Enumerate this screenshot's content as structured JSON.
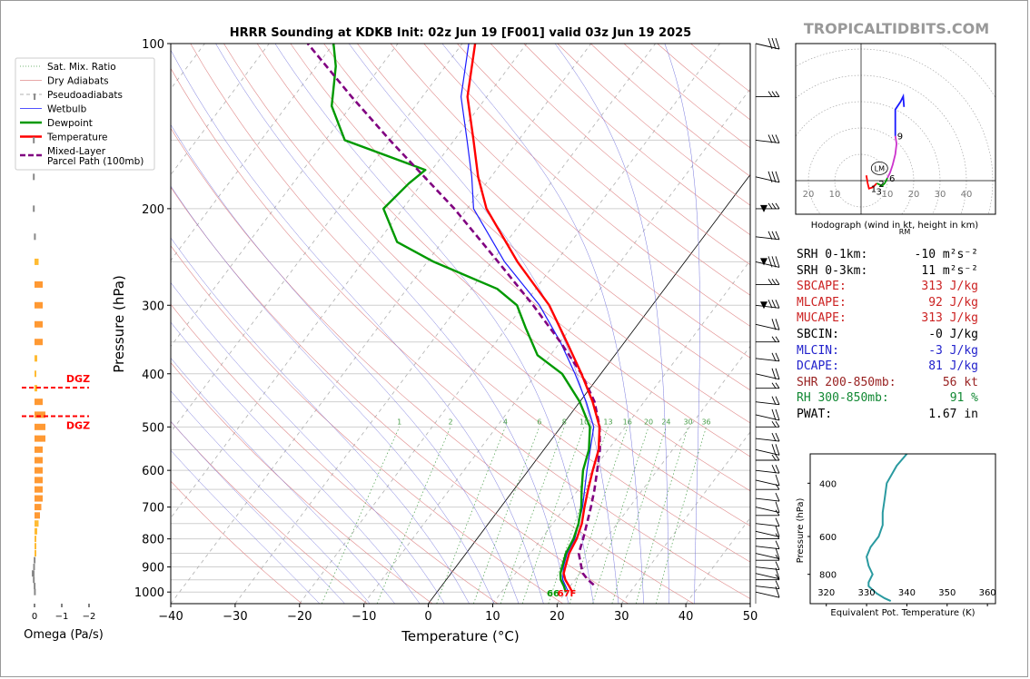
{
  "watermark": "TROPICALTIDBITS.COM",
  "chart_data": {
    "type": "skew-t",
    "title": "HRRR Sounding at KDKB Init: 02z Jun 19 [F001] valid 03z Jun 19 2025",
    "xlabel": "Temperature (°C)",
    "ylabel": "Pressure (hPa)",
    "xlim": [
      -40,
      50
    ],
    "ylim": [
      1050,
      100
    ],
    "x_ticks": [
      "−40",
      "−30",
      "−20",
      "−10",
      "0",
      "10",
      "20",
      "30",
      "40",
      "50"
    ],
    "y_ticks": [
      "100",
      "200",
      "300",
      "400",
      "500",
      "600",
      "700",
      "800",
      "900",
      "1000"
    ],
    "legend": [
      {
        "label": "Sat. Mix. Ratio",
        "color": "#4a9e4a",
        "style": "dotted"
      },
      {
        "label": "Dry Adiabats",
        "color": "#e08a8a",
        "style": "solid"
      },
      {
        "label": "Pseudoadiabats",
        "color": "#999999",
        "style": "dashed"
      },
      {
        "label": "Wetbulb",
        "color": "#1a1aff",
        "style": "solid"
      },
      {
        "label": "Dewpoint",
        "color": "#009900",
        "style": "solid"
      },
      {
        "label": "Temperature",
        "color": "#ff0000",
        "style": "solid"
      },
      {
        "label": "Mixed-Layer\nParcel Path (100mb)",
        "color": "#800080",
        "style": "dashed"
      }
    ],
    "mixing_ratio_labels": [
      "1",
      "2",
      "4",
      "6",
      "8",
      "10",
      "13",
      "16",
      "20",
      "24",
      "30",
      "36"
    ],
    "series": [
      {
        "name": "Temperature",
        "color": "#ff0000",
        "points": [
          [
            1000,
            21
          ],
          [
            975,
            19.8
          ],
          [
            950,
            18.5
          ],
          [
            925,
            17.5
          ],
          [
            900,
            17
          ],
          [
            850,
            16
          ],
          [
            800,
            15.5
          ],
          [
            750,
            14.5
          ],
          [
            700,
            13
          ],
          [
            650,
            11.5
          ],
          [
            600,
            10
          ],
          [
            550,
            8.5
          ],
          [
            500,
            6
          ],
          [
            450,
            2
          ],
          [
            400,
            -3
          ],
          [
            350,
            -9
          ],
          [
            300,
            -16
          ],
          [
            250,
            -26
          ],
          [
            200,
            -37
          ],
          [
            175,
            -42
          ],
          [
            150,
            -47
          ],
          [
            125,
            -53
          ],
          [
            100,
            -58
          ]
        ]
      },
      {
        "name": "Dewpoint",
        "color": "#009900",
        "points": [
          [
            1000,
            20
          ],
          [
            975,
            19
          ],
          [
            950,
            17.8
          ],
          [
            925,
            17
          ],
          [
            900,
            16.5
          ],
          [
            850,
            15.5
          ],
          [
            800,
            15
          ],
          [
            750,
            14
          ],
          [
            700,
            12.5
          ],
          [
            650,
            10.5
          ],
          [
            600,
            8.5
          ],
          [
            550,
            7
          ],
          [
            500,
            4.5
          ],
          [
            450,
            0
          ],
          [
            400,
            -6
          ],
          [
            370,
            -12
          ],
          [
            330,
            -17
          ],
          [
            300,
            -21
          ],
          [
            280,
            -26
          ],
          [
            250,
            -39
          ],
          [
            230,
            -47
          ],
          [
            200,
            -53
          ],
          [
            180,
            -52
          ],
          [
            170,
            -51
          ],
          [
            150,
            -67
          ],
          [
            130,
            -73
          ],
          [
            110,
            -77
          ],
          [
            100,
            -80
          ]
        ]
      },
      {
        "name": "Wetbulb",
        "color": "#1a1aff",
        "points": [
          [
            1000,
            20.4
          ],
          [
            950,
            18.1
          ],
          [
            900,
            16.7
          ],
          [
            850,
            15.7
          ],
          [
            800,
            15.2
          ],
          [
            700,
            12.7
          ],
          [
            600,
            9.1
          ],
          [
            500,
            5.1
          ],
          [
            450,
            1
          ],
          [
            400,
            -4
          ],
          [
            350,
            -10
          ],
          [
            300,
            -17.5
          ],
          [
            250,
            -28
          ],
          [
            200,
            -39
          ],
          [
            175,
            -43
          ],
          [
            150,
            -48
          ],
          [
            125,
            -54
          ],
          [
            100,
            -59
          ]
        ]
      },
      {
        "name": "Mixed-Layer Parcel Path (100mb)",
        "color": "#800080",
        "points": [
          [
            970,
            23.5
          ],
          [
            950,
            22
          ],
          [
            925,
            20.5
          ],
          [
            900,
            19.5
          ],
          [
            850,
            17.5
          ],
          [
            800,
            16.5
          ],
          [
            750,
            15.3
          ],
          [
            700,
            14
          ],
          [
            650,
            12.5
          ],
          [
            600,
            10.7
          ],
          [
            550,
            8.7
          ],
          [
            500,
            6
          ],
          [
            450,
            2.3
          ],
          [
            400,
            -3
          ],
          [
            350,
            -10
          ],
          [
            300,
            -18.5
          ],
          [
            250,
            -29
          ],
          [
            200,
            -42
          ],
          [
            150,
            -60
          ],
          [
            125,
            -71
          ],
          [
            100,
            -84
          ]
        ]
      }
    ],
    "surface_labels": {
      "dewpoint": "66",
      "temperature": "67F"
    },
    "omega": {
      "xlabel": "Omega (Pa/s)",
      "x_ticks": [
        "0",
        "−1",
        "−2"
      ],
      "dgz_label": "DGZ",
      "dgz_bounds_hpa": [
        424,
        478
      ],
      "levels": [
        [
          1000,
          0.02
        ],
        [
          975,
          0.03
        ],
        [
          950,
          0.06
        ],
        [
          925,
          0.1
        ],
        [
          900,
          0.05
        ],
        [
          875,
          0.03
        ],
        [
          850,
          -0.04
        ],
        [
          825,
          -0.06
        ],
        [
          800,
          -0.06
        ],
        [
          775,
          -0.1
        ],
        [
          750,
          -0.15
        ],
        [
          725,
          -0.2
        ],
        [
          700,
          -0.25
        ],
        [
          675,
          -0.3
        ],
        [
          650,
          -0.3
        ],
        [
          625,
          -0.3
        ],
        [
          600,
          -0.3
        ],
        [
          575,
          -0.3
        ],
        [
          550,
          -0.3
        ],
        [
          525,
          -0.4
        ],
        [
          500,
          -0.4
        ],
        [
          475,
          -0.4
        ],
        [
          450,
          -0.3
        ],
        [
          425,
          -0.1
        ],
        [
          400,
          -0.05
        ],
        [
          375,
          -0.1
        ],
        [
          350,
          -0.3
        ],
        [
          325,
          -0.3
        ],
        [
          300,
          -0.3
        ],
        [
          275,
          -0.3
        ],
        [
          250,
          -0.15
        ],
        [
          225,
          0.02
        ],
        [
          200,
          0.06
        ],
        [
          175,
          0.06
        ],
        [
          150,
          0.06
        ],
        [
          125,
          0.03
        ]
      ]
    },
    "hodograph": {
      "caption": "Hodograph (wind in kt, height in km)",
      "ring_labels": [
        "20",
        "10",
        "10",
        "20",
        "30",
        "40"
      ],
      "lm_label": "LM",
      "rm_label": "RM",
      "height_labels": [
        {
          "k": "1",
          "u": 3,
          "v": -3
        },
        {
          "k": "2",
          "u": 6,
          "v": -1
        },
        {
          "k": "3",
          "u": 5,
          "v": -4
        },
        {
          "k": "6",
          "u": 10,
          "v": 1
        },
        {
          "k": "9",
          "u": 13,
          "v": 17
        }
      ],
      "trace": [
        {
          "color": "#ff0000",
          "points": [
            [
              2,
              2
            ],
            [
              2.5,
              -1
            ],
            [
              3,
              -3
            ],
            [
              4.5,
              -2.5
            ],
            [
              6,
              -1
            ]
          ]
        },
        {
          "color": "#009900",
          "points": [
            [
              6,
              -1
            ],
            [
              7,
              -1.5
            ],
            [
              8,
              -2
            ],
            [
              9,
              -1
            ],
            [
              10,
              1
            ]
          ]
        },
        {
          "color": "#cc33cc",
          "points": [
            [
              10,
              1
            ],
            [
              11,
              3
            ],
            [
              12,
              6
            ],
            [
              13,
              10
            ],
            [
              13.5,
              14
            ],
            [
              13,
              17
            ]
          ]
        },
        {
          "color": "#1a1aff",
          "points": [
            [
              13,
              17
            ],
            [
              13,
              22
            ],
            [
              13,
              27
            ],
            [
              15,
              30
            ],
            [
              16,
              32
            ],
            [
              16.3,
              28
            ]
          ]
        }
      ]
    },
    "theta_e": {
      "ylabel": "Pressure (hPa)",
      "xlabel": "Equivalent Pot. Temperature (K)",
      "x_ticks": [
        "320",
        "330",
        "340",
        "350",
        "360"
      ],
      "y_ticks": [
        "400",
        "600",
        "800"
      ],
      "points": [
        [
          980,
          336
        ],
        [
          960,
          334.5
        ],
        [
          925,
          332.5
        ],
        [
          900,
          331.5
        ],
        [
          875,
          330.5
        ],
        [
          850,
          330.5
        ],
        [
          800,
          331.5
        ],
        [
          750,
          330.5
        ],
        [
          700,
          330
        ],
        [
          650,
          331
        ],
        [
          600,
          333
        ],
        [
          550,
          334
        ],
        [
          500,
          334
        ],
        [
          450,
          334.5
        ],
        [
          400,
          335
        ],
        [
          350,
          337.5
        ],
        [
          320,
          340
        ]
      ]
    }
  },
  "stats": [
    {
      "label": "SRH 0-1km:",
      "value": "-10",
      "unit": "m²s⁻²",
      "color": "#000000"
    },
    {
      "label": "SRH 0-3km:",
      "value": "11",
      "unit": "m²s⁻²",
      "color": "#000000"
    },
    {
      "label": "SBCAPE:",
      "value": "313",
      "unit": "J/kg",
      "color": "#cc2222"
    },
    {
      "label": "MLCAPE:",
      "value": "92",
      "unit": "J/kg",
      "color": "#cc2222"
    },
    {
      "label": "MUCAPE:",
      "value": "313",
      "unit": "J/kg",
      "color": "#cc2222"
    },
    {
      "label": "SBCIN:",
      "value": "-0",
      "unit": "J/kg",
      "color": "#000000"
    },
    {
      "label": "MLCIN:",
      "value": "-3",
      "unit": "J/kg",
      "color": "#2222cc"
    },
    {
      "label": "DCAPE:",
      "value": "81",
      "unit": "J/kg",
      "color": "#2222cc"
    },
    {
      "label": "SHR 200-850mb:",
      "value": "56",
      "unit": "kt",
      "color": "#992222"
    },
    {
      "label": "RH 300-850mb:",
      "value": "91",
      "unit": "%",
      "color": "#118833"
    },
    {
      "label": "PWAT:",
      "value": "1.67",
      "unit": "in",
      "color": "#000000"
    }
  ]
}
